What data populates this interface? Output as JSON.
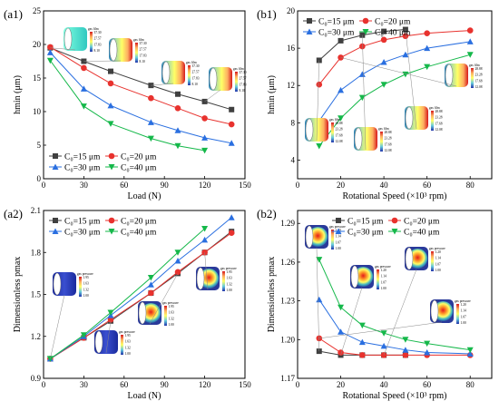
{
  "colors": {
    "c15": "#404040",
    "c20": "#e8322e",
    "c30": "#2a6fe0",
    "c40": "#15b84a"
  },
  "chart_data": [
    {
      "id": "a1",
      "panel_label": "(a1)",
      "type": "line",
      "xlabel": "Load (N)",
      "ylabel": "hmin (μm)",
      "xlim": [
        0,
        150
      ],
      "ylim": [
        0,
        25
      ],
      "xticks": [
        0,
        30,
        60,
        90,
        120,
        150
      ],
      "yticks": [
        0,
        5,
        10,
        15,
        20,
        25
      ],
      "legend_position": "bottom-left",
      "legend_columns": 2,
      "series": [
        {
          "name": "C₀=15 μm",
          "color_key": "c15",
          "marker": "square",
          "x": [
            5,
            30,
            50,
            80,
            100,
            120,
            140
          ],
          "y": [
            19.5,
            17.5,
            16.0,
            13.9,
            12.6,
            11.5,
            10.3
          ]
        },
        {
          "name": "C₀=20 μm",
          "color_key": "c20",
          "marker": "circle",
          "x": [
            5,
            30,
            50,
            80,
            100,
            120,
            140
          ],
          "y": [
            19.6,
            16.5,
            14.2,
            12.0,
            10.5,
            9.0,
            8.1
          ]
        },
        {
          "name": "C₀=30 μm",
          "color_key": "c30",
          "marker": "triangle-up",
          "x": [
            5,
            30,
            50,
            80,
            100,
            120,
            140
          ],
          "y": [
            18.8,
            13.4,
            10.9,
            8.4,
            7.2,
            6.1,
            5.3
          ]
        },
        {
          "name": "C₀=40 μm",
          "color_key": "c40",
          "marker": "triangle-down",
          "x": [
            5,
            30,
            50,
            80,
            100,
            120
          ],
          "y": [
            17.6,
            10.8,
            8.2,
            6.0,
            4.9,
            4.2
          ]
        }
      ],
      "insets": [
        {
          "title": "gas film",
          "values": [
            "37.30",
            "27.57",
            "17.83",
            "8.10"
          ],
          "orientation": "side",
          "color_scheme": "teal-gradient"
        },
        {
          "title": "gas film",
          "values": [
            "37.30",
            "27.57",
            "17.83",
            "8.10"
          ],
          "orientation": "angled",
          "color_scheme": "rainbow"
        },
        {
          "title": "gas film",
          "values": [
            "37.30",
            "27.57",
            "17.83",
            "8.10"
          ],
          "orientation": "angled",
          "color_scheme": "rainbow"
        },
        {
          "title": "gas film",
          "values": [
            "37.30",
            "27.57",
            "17.83",
            "8.10"
          ],
          "orientation": "front",
          "color_scheme": "rainbow"
        }
      ]
    },
    {
      "id": "b1",
      "panel_label": "(b1)",
      "type": "line",
      "xlabel": "Rotational Speed (×10³ rpm)",
      "ylabel": "hmin (μm)",
      "xlim": [
        0,
        90
      ],
      "ylim": [
        2,
        20
      ],
      "xticks": [
        0,
        20,
        40,
        60,
        80
      ],
      "yticks": [
        4,
        8,
        12,
        16,
        20
      ],
      "legend_position": "top-left",
      "legend_columns": 2,
      "series": [
        {
          "name": "C₀=15 μm",
          "color_key": "c15",
          "marker": "square",
          "x": [
            10,
            20,
            30,
            40,
            50
          ],
          "y": [
            14.7,
            16.8,
            17.4,
            17.8,
            18.0
          ]
        },
        {
          "name": "C₀=20 μm",
          "color_key": "c20",
          "marker": "circle",
          "x": [
            10,
            20,
            30,
            40,
            50,
            60,
            80
          ],
          "y": [
            12.1,
            15.0,
            16.2,
            16.9,
            17.3,
            17.6,
            17.9
          ]
        },
        {
          "name": "C₀=30 μm",
          "color_key": "c30",
          "marker": "triangle-up",
          "x": [
            10,
            20,
            30,
            40,
            50,
            60,
            80
          ],
          "y": [
            8.2,
            11.5,
            13.2,
            14.5,
            15.3,
            16.0,
            16.7
          ]
        },
        {
          "name": "C₀=40 μm",
          "color_key": "c40",
          "marker": "triangle-down",
          "x": [
            10,
            20,
            30,
            40,
            50,
            60,
            80
          ],
          "y": [
            5.5,
            8.5,
            10.7,
            12.1,
            13.2,
            14.0,
            15.3
          ]
        }
      ],
      "insets": [
        {
          "title": "gas film",
          "values": [
            "28.88",
            "23.28",
            "17.68",
            "12.08"
          ],
          "orientation": "front",
          "color_scheme": "rainbow"
        },
        {
          "title": "gas film",
          "values": [
            "28.88",
            "23.28",
            "17.68",
            "12.08"
          ],
          "orientation": "front",
          "color_scheme": "rainbow"
        },
        {
          "title": "gas film",
          "values": [
            "28.88",
            "23.28",
            "17.68",
            "12.08"
          ],
          "orientation": "front",
          "color_scheme": "rainbow"
        },
        {
          "title": "gas film",
          "values": [
            "28.88",
            "23.28",
            "17.68",
            "12.08"
          ],
          "orientation": "front",
          "color_scheme": "rainbow"
        }
      ]
    },
    {
      "id": "a2",
      "panel_label": "(a2)",
      "type": "line",
      "xlabel": "Load (N)",
      "ylabel": "Dimensionless pmax",
      "xlim": [
        0,
        150
      ],
      "ylim": [
        0.9,
        2.1
      ],
      "xticks": [
        0,
        30,
        60,
        90,
        120,
        150
      ],
      "yticks": [
        0.9,
        1.2,
        1.5,
        1.8,
        2.1
      ],
      "legend_position": "top-left",
      "legend_columns": 2,
      "series": [
        {
          "name": "C₀=15 μm",
          "color_key": "c15",
          "marker": "square",
          "x": [
            5,
            30,
            50,
            80,
            100,
            120,
            140
          ],
          "y": [
            1.04,
            1.19,
            1.31,
            1.51,
            1.65,
            1.8,
            1.95
          ]
        },
        {
          "name": "C₀=20 μm",
          "color_key": "c20",
          "marker": "circle",
          "x": [
            5,
            30,
            50,
            80,
            100,
            120,
            140
          ],
          "y": [
            1.04,
            1.19,
            1.32,
            1.51,
            1.66,
            1.8,
            1.94
          ]
        },
        {
          "name": "C₀=30 μm",
          "color_key": "c30",
          "marker": "triangle-up",
          "x": [
            5,
            30,
            50,
            80,
            100,
            120,
            140
          ],
          "y": [
            1.04,
            1.2,
            1.35,
            1.57,
            1.74,
            1.89,
            2.05
          ]
        },
        {
          "name": "C₀=40 μm",
          "color_key": "c40",
          "marker": "triangle-down",
          "x": [
            5,
            30,
            50,
            80,
            100,
            120
          ],
          "y": [
            1.04,
            1.21,
            1.37,
            1.62,
            1.8,
            1.97
          ]
        }
      ],
      "insets": [
        {
          "title": "gas pressure",
          "values": [
            "1.95",
            "1.63",
            "1.32",
            "1.00"
          ],
          "orientation": "front",
          "color_scheme": "blue"
        },
        {
          "title": "gas pressure",
          "values": [
            "1.95",
            "1.63",
            "1.32",
            "1.00"
          ],
          "orientation": "front",
          "color_scheme": "blue"
        },
        {
          "title": "gas pressure",
          "values": [
            "1.95",
            "1.63",
            "1.32",
            "1.00"
          ],
          "orientation": "front",
          "color_scheme": "hotspot"
        },
        {
          "title": "gas pressure",
          "values": [
            "1.95",
            "1.63",
            "1.32",
            "1.00"
          ],
          "orientation": "front",
          "color_scheme": "hotspot"
        }
      ]
    },
    {
      "id": "b2",
      "panel_label": "(b2)",
      "type": "line",
      "xlabel": "Rotational Speed (×10³ rpm)",
      "ylabel": "Dimensionless pmax",
      "xlim": [
        0,
        90
      ],
      "ylim": [
        1.17,
        1.3
      ],
      "xticks": [
        0,
        20,
        40,
        60,
        80
      ],
      "yticks": [
        1.17,
        1.2,
        1.23,
        1.26,
        1.29
      ],
      "legend_position": "top-center",
      "legend_columns": 2,
      "series": [
        {
          "name": "C₀=15 μm",
          "color_key": "c15",
          "marker": "square",
          "x": [
            10,
            20,
            30,
            40,
            50
          ],
          "y": [
            1.191,
            1.188,
            1.188,
            1.188,
            1.188
          ]
        },
        {
          "name": "C₀=20 μm",
          "color_key": "c20",
          "marker": "circle",
          "x": [
            10,
            20,
            30,
            40,
            50,
            60,
            80
          ],
          "y": [
            1.201,
            1.19,
            1.188,
            1.188,
            1.188,
            1.188,
            1.188
          ]
        },
        {
          "name": "C₀=30 μm",
          "color_key": "c30",
          "marker": "triangle-up",
          "x": [
            10,
            20,
            30,
            40,
            50,
            60,
            80
          ],
          "y": [
            1.231,
            1.206,
            1.198,
            1.195,
            1.192,
            1.19,
            1.189
          ]
        },
        {
          "name": "C₀=40 μm",
          "color_key": "c40",
          "marker": "triangle-down",
          "x": [
            10,
            20,
            30,
            40,
            50,
            60,
            80
          ],
          "y": [
            1.262,
            1.225,
            1.211,
            1.205,
            1.2,
            1.197,
            1.192
          ]
        }
      ],
      "insets": [
        {
          "title": "gas pressure",
          "values": [
            "1.20",
            "1.14",
            "1.07",
            "1.00"
          ],
          "orientation": "front",
          "color_scheme": "hotspot"
        },
        {
          "title": "gas pressure",
          "values": [
            "1.20",
            "1.14",
            "1.07",
            "1.00"
          ],
          "orientation": "front",
          "color_scheme": "hotspot"
        },
        {
          "title": "gas pressure",
          "values": [
            "1.20",
            "1.14",
            "1.07",
            "1.00"
          ],
          "orientation": "front",
          "color_scheme": "hotspot"
        },
        {
          "title": "gas pressure",
          "values": [
            "1.20",
            "1.14",
            "1.07",
            "1.00"
          ],
          "orientation": "front",
          "color_scheme": "hotspot"
        }
      ]
    }
  ]
}
